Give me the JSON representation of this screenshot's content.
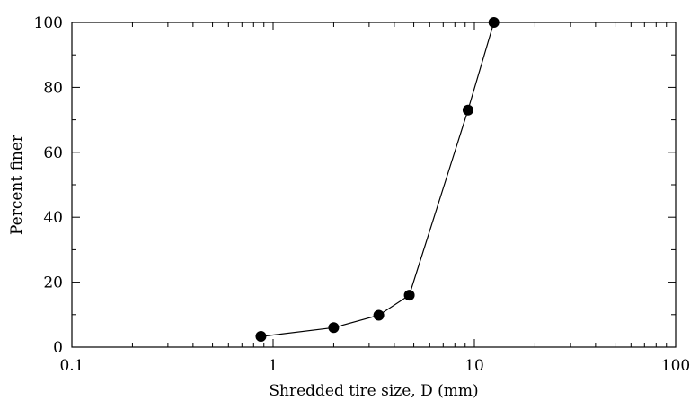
{
  "chart_data": {
    "type": "line",
    "xlabel": "Shredded tire size, D (mm)",
    "ylabel": "Percent finer",
    "x_scale": "log",
    "xlim": [
      0.1,
      100
    ],
    "ylim": [
      0,
      100
    ],
    "x_ticks": [
      0.1,
      1,
      10,
      100
    ],
    "x_tick_labels": [
      "0.1",
      "1",
      "10",
      "100"
    ],
    "y_ticks": [
      0,
      20,
      40,
      60,
      80,
      100
    ],
    "y_tick_labels": [
      "0",
      "20",
      "40",
      "60",
      "80",
      "100"
    ],
    "grid": false,
    "series": [
      {
        "x": [
          0.87,
          2.0,
          3.35,
          4.75,
          9.3,
          12.5
        ],
        "y": [
          3.3,
          6.0,
          9.8,
          16.0,
          73.0,
          100.0
        ]
      }
    ],
    "colors": {
      "line": "#000000",
      "marker": "#000000",
      "axis": "#000000"
    }
  }
}
